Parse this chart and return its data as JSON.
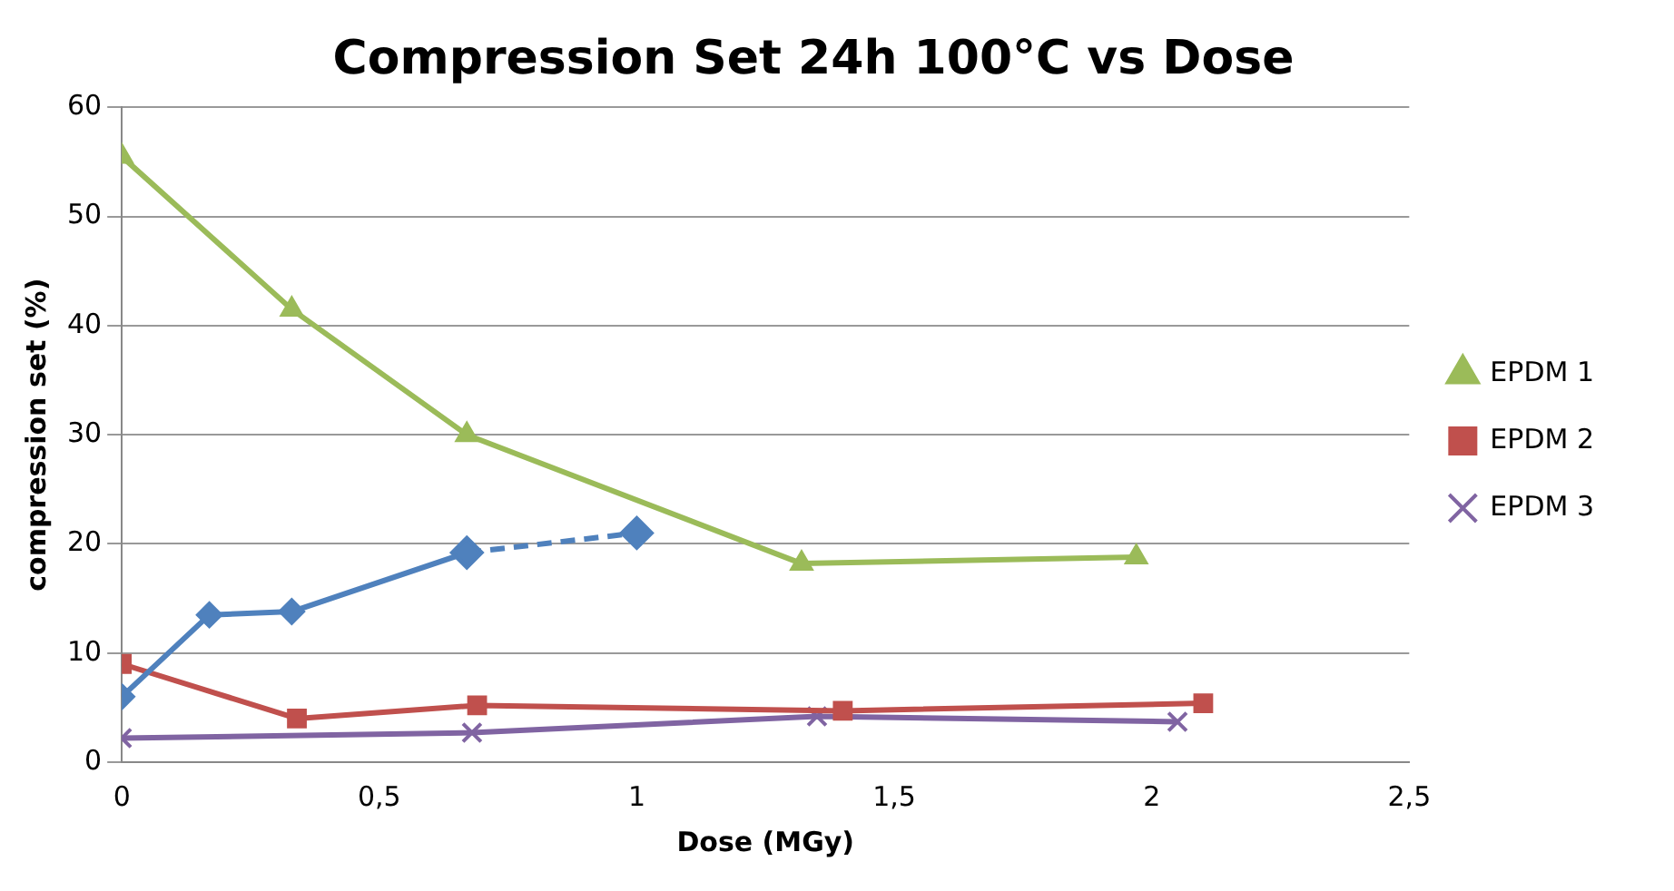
{
  "chart_data": {
    "type": "line",
    "title": "Compression Set 24h 100°C vs Dose",
    "xlabel": "Dose (MGy)",
    "ylabel": "compression set (%)",
    "xlim": [
      0,
      2.5
    ],
    "xticks": [
      0,
      {
        "value": 0.5,
        "label": "0,5"
      },
      1,
      {
        "value": 1.5,
        "label": "1,5"
      },
      2,
      {
        "value": 2.5,
        "label": "2,5"
      }
    ],
    "ylim": [
      0,
      60
    ],
    "yticks": [
      0,
      10,
      20,
      30,
      40,
      50,
      60
    ],
    "grid": "y",
    "legend": "right",
    "series": [
      {
        "color": "#4f81bd",
        "marker": "diamond",
        "line_style": "solid",
        "x": [
          0,
          0.17,
          0.33,
          0.67
        ],
        "values": [
          6,
          13.5,
          13.8,
          19.2
        ]
      },
      {
        "color": "#4f81bd",
        "marker": "diamond",
        "line_style": "dashed",
        "x": [
          0.67,
          1
        ],
        "values": [
          19.2,
          21
        ]
      },
      {
        "name": "EPDM 1",
        "color": "#9bbb59",
        "marker": "triangle",
        "line_style": "solid",
        "x": [
          0,
          0.33,
          0.67,
          1.32,
          1.97
        ],
        "values": [
          55.5,
          41.5,
          30,
          18.2,
          18.8
        ]
      },
      {
        "name": "EPDM 2",
        "color": "#c0504d",
        "marker": "square",
        "line_style": "solid",
        "x": [
          0,
          0.34,
          0.69,
          1.4,
          2.1
        ],
        "values": [
          9,
          4,
          5.2,
          4.7,
          5.4
        ]
      },
      {
        "name": "EPDM 3",
        "color": "#8064a2",
        "marker": "cross",
        "line_style": "solid",
        "x": [
          0,
          0.68,
          1.35,
          2.05
        ],
        "values": [
          2.2,
          2.7,
          4.2,
          3.7
        ]
      }
    ]
  }
}
